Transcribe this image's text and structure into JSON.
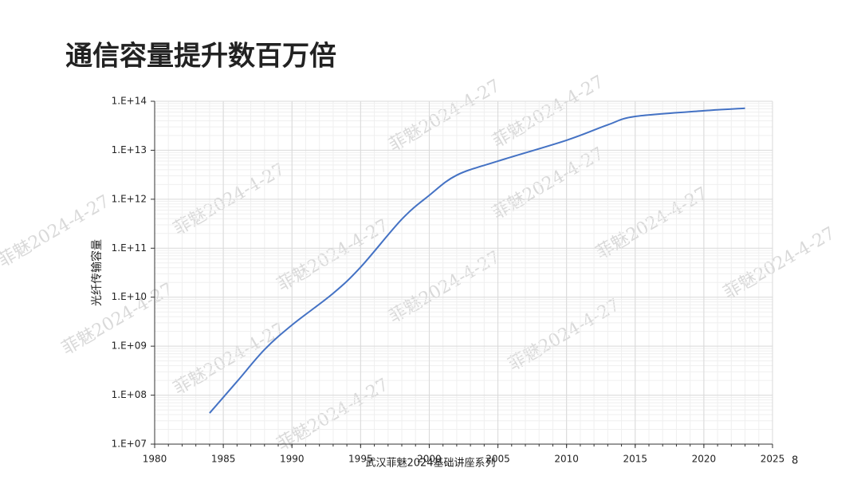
{
  "chart_data": {
    "type": "line",
    "title": "通信容量提升数百万倍",
    "y_label": "光纤传输容量",
    "footer": "武汉菲魅2024基础讲座系列",
    "page_number": 8,
    "watermark": "菲魅2024-4-27",
    "log_y": true,
    "grid": true,
    "minor_grid": true,
    "xlim": [
      1980,
      2025
    ],
    "xticks": [
      1980,
      1985,
      1990,
      1995,
      2000,
      2005,
      2010,
      2015,
      2020,
      2025
    ],
    "ylim": [
      10000000.0,
      100000000000000.0
    ],
    "yticks": [
      {
        "value": 10000000.0,
        "label": "1.E+07"
      },
      {
        "value": 100000000.0,
        "label": "1.E+08"
      },
      {
        "value": 1000000000.0,
        "label": "1.E+09"
      },
      {
        "value": 10000000000.0,
        "label": "1.E+10"
      },
      {
        "value": 100000000000.0,
        "label": "1.E+11"
      },
      {
        "value": 1000000000000.0,
        "label": "1.E+12"
      },
      {
        "value": 10000000000000.0,
        "label": "1.E+13"
      },
      {
        "value": 100000000000000.0,
        "label": "1.E+14"
      }
    ],
    "x": [
      1984,
      1986,
      1988,
      1990,
      1993,
      1995,
      1998,
      2000,
      2002,
      2005,
      2010,
      2013,
      2015,
      2020,
      2023
    ],
    "series": [
      {
        "name": "光纤传输容量",
        "color": "#4472c4",
        "values": [
          43000000.0,
          190000000.0,
          850000000.0,
          2700000000.0,
          12000000000.0,
          41000000000.0,
          390000000000.0,
          1200000000000.0,
          3100000000000.0,
          6000000000000.0,
          16000000000000.0,
          33000000000000.0,
          49000000000000.0,
          64000000000000.0,
          72000000000000.0
        ]
      }
    ]
  }
}
